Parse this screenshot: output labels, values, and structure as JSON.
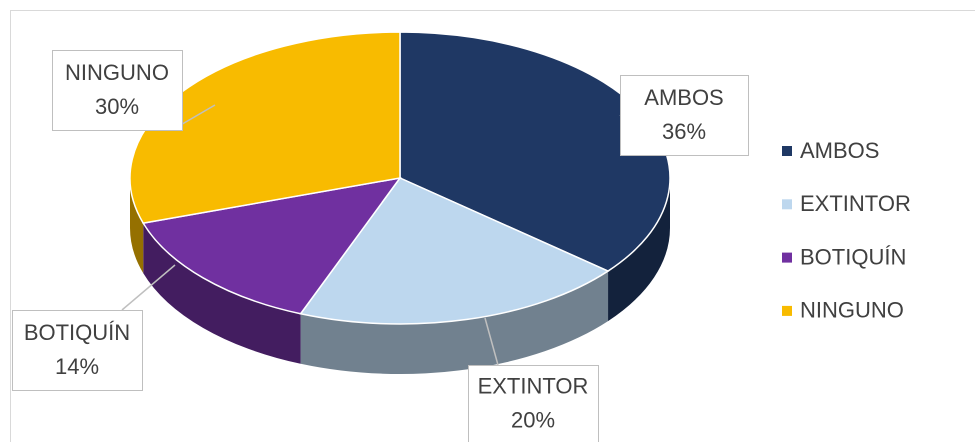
{
  "chart_data": {
    "type": "pie",
    "categories": [
      "AMBOS",
      "EXTINTOR",
      "BOTIQUÍN",
      "NINGUNO"
    ],
    "values": [
      36,
      20,
      14,
      30
    ],
    "value_labels": [
      "36%",
      "20%",
      "14%",
      "30%"
    ],
    "colors": [
      "#1f3864",
      "#bdd7ee",
      "#7030a0",
      "#f8bb00"
    ],
    "legend": "right"
  }
}
